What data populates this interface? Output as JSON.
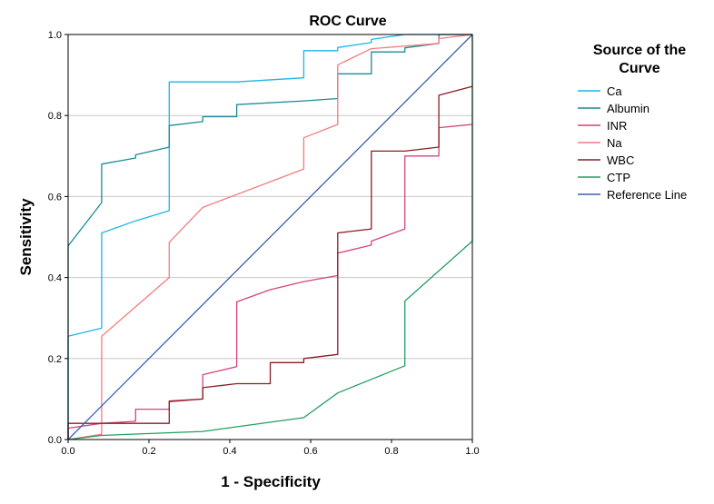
{
  "chart_data": {
    "type": "line",
    "title": "ROC Curve",
    "xlabel": "1 - Specificity",
    "ylabel": "Sensitivity",
    "xlim": [
      0,
      1
    ],
    "ylim": [
      0,
      1
    ],
    "x_ticks": [
      "0.0",
      "0.2",
      "0.4",
      "0.6",
      "0.8",
      "1.0"
    ],
    "y_ticks": [
      "0.0",
      "0.2",
      "0.4",
      "0.6",
      "0.8",
      "1.0"
    ],
    "grid": "horizontal",
    "legend_title": "Source of the Curve",
    "legend_title_lines": [
      "Source of the",
      "Curve"
    ],
    "legend_position": "right",
    "series": [
      {
        "name": "Ca",
        "color": "#1cb5e6",
        "points": [
          [
            0,
            0
          ],
          [
            0,
            0.255
          ],
          [
            0.083,
            0.275
          ],
          [
            0.083,
            0.51
          ],
          [
            0.167,
            0.54
          ],
          [
            0.25,
            0.565
          ],
          [
            0.25,
            0.883
          ],
          [
            0.417,
            0.883
          ],
          [
            0.583,
            0.893
          ],
          [
            0.583,
            0.96
          ],
          [
            0.667,
            0.96
          ],
          [
            0.667,
            0.968
          ],
          [
            0.75,
            0.98
          ],
          [
            0.75,
            0.988
          ],
          [
            0.833,
            1
          ],
          [
            1,
            1
          ]
        ]
      },
      {
        "name": "Albumin",
        "color": "#1a8c96",
        "points": [
          [
            0,
            0
          ],
          [
            0,
            0.478
          ],
          [
            0.083,
            0.585
          ],
          [
            0.083,
            0.68
          ],
          [
            0.167,
            0.695
          ],
          [
            0.167,
            0.703
          ],
          [
            0.25,
            0.722
          ],
          [
            0.25,
            0.775
          ],
          [
            0.333,
            0.785
          ],
          [
            0.333,
            0.797
          ],
          [
            0.417,
            0.797
          ],
          [
            0.417,
            0.827
          ],
          [
            0.583,
            0.836
          ],
          [
            0.667,
            0.842
          ],
          [
            0.667,
            0.903
          ],
          [
            0.75,
            0.903
          ],
          [
            0.75,
            0.957
          ],
          [
            0.833,
            0.957
          ],
          [
            0.833,
            0.967
          ],
          [
            0.917,
            0.978
          ],
          [
            0.917,
            1
          ],
          [
            1,
            1
          ]
        ]
      },
      {
        "name": "INR",
        "color": "#d4447e",
        "points": [
          [
            0,
            0
          ],
          [
            0,
            0.028
          ],
          [
            0.083,
            0.04
          ],
          [
            0.167,
            0.045
          ],
          [
            0.167,
            0.075
          ],
          [
            0.25,
            0.075
          ],
          [
            0.25,
            0.093
          ],
          [
            0.333,
            0.1
          ],
          [
            0.333,
            0.16
          ],
          [
            0.417,
            0.18
          ],
          [
            0.417,
            0.34
          ],
          [
            0.5,
            0.37
          ],
          [
            0.583,
            0.39
          ],
          [
            0.667,
            0.405
          ],
          [
            0.667,
            0.46
          ],
          [
            0.75,
            0.48
          ],
          [
            0.75,
            0.49
          ],
          [
            0.833,
            0.52
          ],
          [
            0.833,
            0.7
          ],
          [
            0.917,
            0.7
          ],
          [
            0.917,
            0.77
          ],
          [
            1,
            0.778
          ]
        ]
      },
      {
        "name": "Na",
        "color": "#f47c7c",
        "points": [
          [
            0,
            0
          ],
          [
            0.083,
            0.013
          ],
          [
            0.083,
            0.255
          ],
          [
            0.25,
            0.4
          ],
          [
            0.25,
            0.487
          ],
          [
            0.333,
            0.573
          ],
          [
            0.583,
            0.668
          ],
          [
            0.583,
            0.745
          ],
          [
            0.667,
            0.778
          ],
          [
            0.667,
            0.925
          ],
          [
            0.75,
            0.965
          ],
          [
            0.917,
            0.978
          ],
          [
            0.917,
            0.99
          ],
          [
            1,
            1
          ]
        ]
      },
      {
        "name": "WBC",
        "color": "#8a1e24",
        "points": [
          [
            0,
            0
          ],
          [
            0,
            0.04
          ],
          [
            0.25,
            0.04
          ],
          [
            0.25,
            0.095
          ],
          [
            0.333,
            0.1
          ],
          [
            0.333,
            0.128
          ],
          [
            0.417,
            0.138
          ],
          [
            0.5,
            0.138
          ],
          [
            0.5,
            0.19
          ],
          [
            0.583,
            0.19
          ],
          [
            0.583,
            0.2
          ],
          [
            0.667,
            0.21
          ],
          [
            0.667,
            0.51
          ],
          [
            0.75,
            0.52
          ],
          [
            0.75,
            0.712
          ],
          [
            0.833,
            0.712
          ],
          [
            0.917,
            0.722
          ],
          [
            0.917,
            0.85
          ],
          [
            1,
            0.872
          ]
        ]
      },
      {
        "name": "CTP",
        "color": "#22a060",
        "points": [
          [
            0,
            0
          ],
          [
            0.083,
            0.01
          ],
          [
            0.333,
            0.02
          ],
          [
            0.583,
            0.054
          ],
          [
            0.667,
            0.115
          ],
          [
            0.833,
            0.182
          ],
          [
            0.833,
            0.342
          ],
          [
            1,
            0.49
          ],
          [
            1,
            1
          ]
        ]
      },
      {
        "name": "Reference Line",
        "color": "#3b5fb5",
        "points": [
          [
            0,
            0
          ],
          [
            1,
            1
          ]
        ]
      }
    ]
  }
}
